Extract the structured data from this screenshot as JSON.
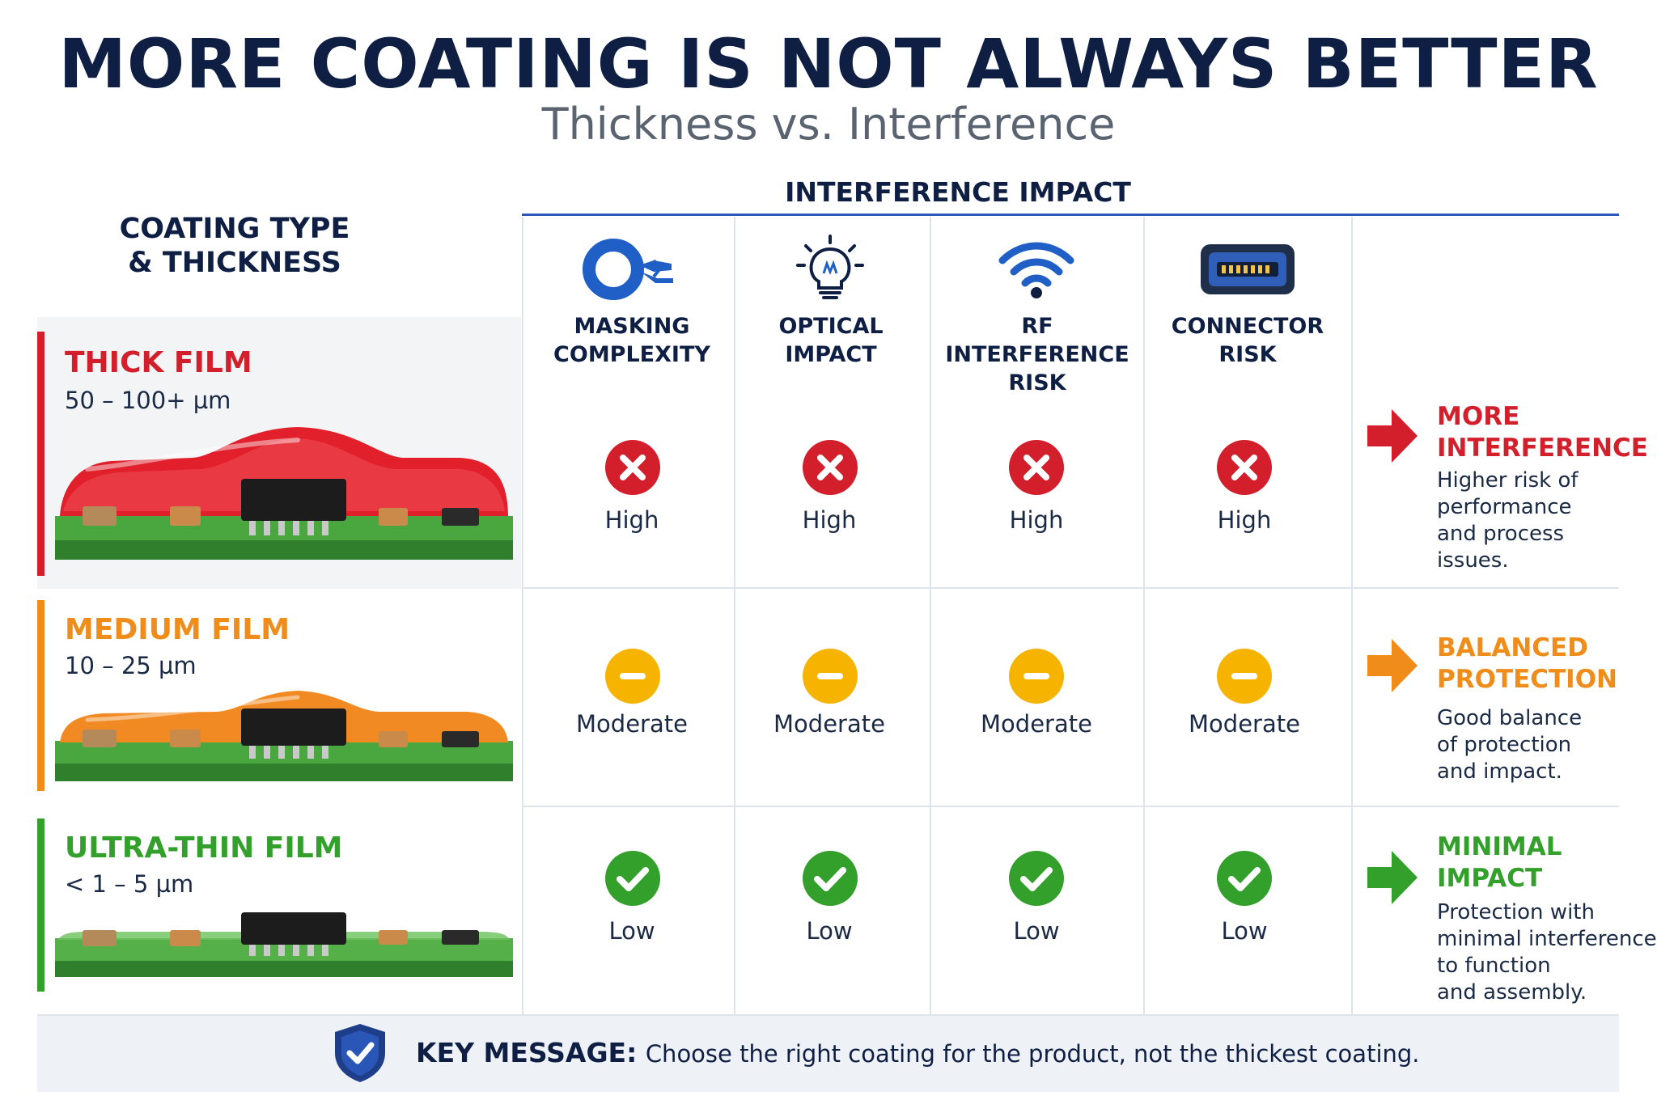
{
  "title": "MORE COATING IS NOT ALWAYS BETTER",
  "subtitle": "Thickness vs. Interference",
  "impact_header": "INTERFERENCE IMPACT",
  "coating_header": {
    "line1": "COATING TYPE",
    "line2": "& THICKNESS"
  },
  "columns": [
    {
      "icon": "masking-tape-icon",
      "line1": "MASKING",
      "line2": "COMPLEXITY"
    },
    {
      "icon": "light-bulb-icon",
      "line1": "OPTICAL",
      "line2": "IMPACT"
    },
    {
      "icon": "wifi-signal-icon",
      "line1": "RF INTERFERENCE",
      "line2": "RISK"
    },
    {
      "icon": "connector-icon",
      "line1": "CONNECTOR",
      "line2": "RISK"
    }
  ],
  "rows": [
    {
      "name": "THICK FILM",
      "thickness": "50 – 100+ µm",
      "color": "#d31f2b",
      "panel_color": "#f3f4f6",
      "rating": "High",
      "rating_icon": "x-icon",
      "ratings": [
        "High",
        "High",
        "High",
        "High"
      ],
      "outcome_title": [
        "MORE",
        "INTERFERENCE"
      ],
      "outcome_desc": [
        "Higher risk of",
        "performance",
        "and process",
        "issues."
      ]
    },
    {
      "name": "MEDIUM FILM",
      "thickness": "10 – 25 µm",
      "color": "#f08c1a",
      "panel_color": "#ffffff",
      "rating": "Moderate",
      "rating_icon": "minus-icon",
      "ratings": [
        "Moderate",
        "Moderate",
        "Moderate",
        "Moderate"
      ],
      "outcome_title": [
        "BALANCED",
        "PROTECTION"
      ],
      "outcome_desc": [
        "Good balance",
        "of protection",
        "and impact."
      ]
    },
    {
      "name": "ULTRA-THIN FILM",
      "thickness": "< 1 – 5 µm",
      "color": "#33a02c",
      "panel_color": "#ffffff",
      "rating": "Low",
      "rating_icon": "check-icon",
      "ratings": [
        "Low",
        "Low",
        "Low",
        "Low"
      ],
      "outcome_title": [
        "MINIMAL",
        "IMPACT"
      ],
      "outcome_desc": [
        "Protection with",
        "minimal interference",
        "to function",
        "and assembly."
      ]
    }
  ],
  "key_message": {
    "label": "KEY MESSAGE:",
    "text": "Choose the right coating for the product, not the thickest coating."
  },
  "colors": {
    "navy": "#0f1f44",
    "blue": "#1f5fc6",
    "red": "#d31f2b",
    "orange": "#f08c1a",
    "amber": "#f6b400",
    "green": "#33a02c",
    "pcb_green": "#3f9a3a"
  }
}
